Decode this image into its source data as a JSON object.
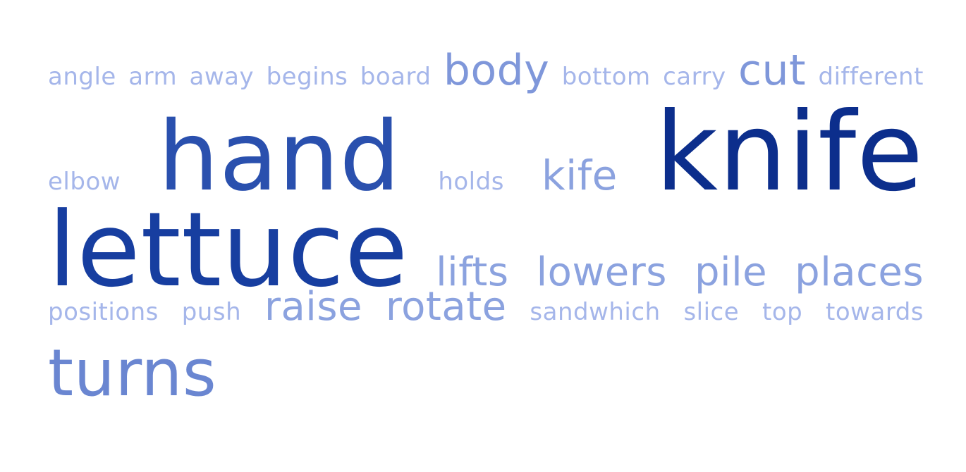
{
  "colors": {
    "level1": "#a5b6ea",
    "level2": "#8ba2df",
    "level3": "#7f97da",
    "level4": "#6a86d1",
    "level5": "#2a50ae",
    "level6": "#0c2e8c",
    "lettuce": "#173ea0"
  },
  "rows": [
    [
      {
        "id": "angle",
        "text": "angle",
        "level": 1
      },
      {
        "id": "arm",
        "text": "arm",
        "level": 1
      },
      {
        "id": "away",
        "text": "away",
        "level": 1
      },
      {
        "id": "begins",
        "text": "begins",
        "level": 1
      },
      {
        "id": "board",
        "text": "board",
        "level": 1
      },
      {
        "id": "body",
        "text": "body",
        "level": 3
      },
      {
        "id": "bottom",
        "text": "bottom",
        "level": 1
      },
      {
        "id": "carry",
        "text": "carry",
        "level": 1
      },
      {
        "id": "cut",
        "text": "cut",
        "level": 3
      },
      {
        "id": "different",
        "text": "different",
        "level": 1
      }
    ],
    [
      {
        "id": "elbow",
        "text": "elbow",
        "level": 1
      },
      {
        "id": "hand",
        "text": "hand",
        "level": 5
      },
      {
        "id": "holds",
        "text": "holds",
        "level": 1
      },
      {
        "id": "kife",
        "text": "kife",
        "level": 2
      },
      {
        "id": "knife",
        "text": "knife",
        "level": 6
      }
    ],
    [
      {
        "id": "lettuce",
        "text": "lettuce",
        "level": 5,
        "color": "lettuce"
      },
      {
        "id": "lifts",
        "text": "lifts",
        "level": 2
      },
      {
        "id": "lowers",
        "text": "lowers",
        "level": 2
      },
      {
        "id": "pile",
        "text": "pile",
        "level": 2
      },
      {
        "id": "places",
        "text": "places",
        "level": 2
      }
    ],
    [
      {
        "id": "positions",
        "text": "positions",
        "level": 1
      },
      {
        "id": "push",
        "text": "push",
        "level": 1
      },
      {
        "id": "raise",
        "text": "raise",
        "level": 2
      },
      {
        "id": "rotate",
        "text": "rotate",
        "level": 2
      },
      {
        "id": "sandwhich",
        "text": "sandwhich",
        "level": 1
      },
      {
        "id": "slice",
        "text": "slice",
        "level": 1
      },
      {
        "id": "top",
        "text": "top",
        "level": 1
      },
      {
        "id": "towards",
        "text": "towards",
        "level": 1
      }
    ],
    [
      {
        "id": "turns",
        "text": "turns",
        "level": 4
      }
    ]
  ]
}
